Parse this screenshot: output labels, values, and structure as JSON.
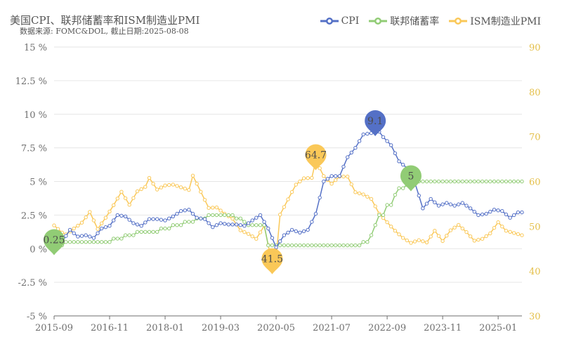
{
  "chart_data": {
    "type": "line",
    "title": "美国CPI、联邦储蓄率和ISM制造业PMI",
    "subtitle": "数据来源: FOMC&DOL, 截止日期:2025-08-08",
    "x_ticks": [
      "2015-09",
      "2016-11",
      "2018-01",
      "2019-03",
      "2020-05",
      "2021-07",
      "2022-09",
      "2023-11",
      "2025-01"
    ],
    "y_left": {
      "ticks": [
        -5,
        -2.5,
        0,
        2.5,
        5,
        7.5,
        10,
        12.5,
        15
      ],
      "tick_labels": [
        "-5 %",
        "-2.5 %",
        "0 %",
        "2.5 %",
        "5 %",
        "7.5 %",
        "10 %",
        "12.5 %",
        "15 %"
      ],
      "range": [
        -5,
        15
      ]
    },
    "y_right": {
      "ticks": [
        30,
        40,
        50,
        60,
        70,
        80,
        90
      ],
      "tick_labels": [
        "30",
        "40",
        "50",
        "60",
        "70",
        "80",
        "90"
      ],
      "range": [
        30,
        90
      ]
    },
    "series": [
      {
        "name": "CPI",
        "color": "#5470c6",
        "axis": "left",
        "points": [
          [
            "2015-09",
            0.0
          ],
          [
            "2015-11",
            0.5
          ],
          [
            "2016-01",
            1.4
          ],
          [
            "2016-03",
            0.9
          ],
          [
            "2016-05",
            1.0
          ],
          [
            "2016-07",
            0.8
          ],
          [
            "2016-09",
            1.5
          ],
          [
            "2016-11",
            1.7
          ],
          [
            "2017-01",
            2.5
          ],
          [
            "2017-03",
            2.4
          ],
          [
            "2017-05",
            1.9
          ],
          [
            "2017-07",
            1.7
          ],
          [
            "2017-09",
            2.2
          ],
          [
            "2017-11",
            2.2
          ],
          [
            "2018-01",
            2.1
          ],
          [
            "2018-03",
            2.4
          ],
          [
            "2018-05",
            2.8
          ],
          [
            "2018-07",
            2.9
          ],
          [
            "2018-09",
            2.3
          ],
          [
            "2018-11",
            2.2
          ],
          [
            "2019-01",
            1.6
          ],
          [
            "2019-03",
            1.9
          ],
          [
            "2019-05",
            1.8
          ],
          [
            "2019-07",
            1.8
          ],
          [
            "2019-09",
            1.7
          ],
          [
            "2019-11",
            2.1
          ],
          [
            "2020-01",
            2.5
          ],
          [
            "2020-03",
            1.5
          ],
          [
            "2020-05",
            0.1
          ],
          [
            "2020-07",
            1.0
          ],
          [
            "2020-09",
            1.4
          ],
          [
            "2020-11",
            1.2
          ],
          [
            "2021-01",
            1.4
          ],
          [
            "2021-03",
            2.6
          ],
          [
            "2021-05",
            5.0
          ],
          [
            "2021-07",
            5.4
          ],
          [
            "2021-09",
            5.4
          ],
          [
            "2021-11",
            6.8
          ],
          [
            "2022-01",
            7.5
          ],
          [
            "2022-03",
            8.5
          ],
          [
            "2022-05",
            8.6
          ],
          [
            "2022-06",
            9.1
          ],
          [
            "2022-08",
            8.3
          ],
          [
            "2022-10",
            7.7
          ],
          [
            "2022-12",
            6.5
          ],
          [
            "2023-02",
            6.0
          ],
          [
            "2023-04",
            4.9
          ],
          [
            "2023-06",
            3.0
          ],
          [
            "2023-08",
            3.7
          ],
          [
            "2023-10",
            3.2
          ],
          [
            "2023-12",
            3.4
          ],
          [
            "2024-02",
            3.2
          ],
          [
            "2024-04",
            3.4
          ],
          [
            "2024-06",
            3.0
          ],
          [
            "2024-08",
            2.5
          ],
          [
            "2024-10",
            2.6
          ],
          [
            "2024-12",
            2.9
          ],
          [
            "2025-02",
            2.8
          ],
          [
            "2025-04",
            2.3
          ],
          [
            "2025-06",
            2.7
          ],
          [
            "2025-07",
            2.7
          ]
        ]
      },
      {
        "name": "联邦储蓄率",
        "color": "#91cc75",
        "axis": "left",
        "points": [
          [
            "2015-09",
            0.25
          ],
          [
            "2015-12",
            0.5
          ],
          [
            "2016-12",
            0.75
          ],
          [
            "2017-03",
            1.0
          ],
          [
            "2017-06",
            1.25
          ],
          [
            "2017-12",
            1.5
          ],
          [
            "2018-03",
            1.75
          ],
          [
            "2018-06",
            2.0
          ],
          [
            "2018-09",
            2.25
          ],
          [
            "2018-12",
            2.5
          ],
          [
            "2019-07",
            2.25
          ],
          [
            "2019-09",
            2.0
          ],
          [
            "2019-10",
            1.75
          ],
          [
            "2020-03",
            0.25
          ],
          [
            "2022-03",
            0.5
          ],
          [
            "2022-05",
            1.0
          ],
          [
            "2022-06",
            1.75
          ],
          [
            "2022-07",
            2.5
          ],
          [
            "2022-09",
            3.25
          ],
          [
            "2022-11",
            4.0
          ],
          [
            "2022-12",
            4.5
          ],
          [
            "2023-02",
            4.75
          ],
          [
            "2023-03",
            5.0
          ],
          [
            "2023-07",
            5.0
          ],
          [
            "2025-07",
            5.0
          ]
        ]
      },
      {
        "name": "ISM制造业PMI",
        "color": "#fac858",
        "axis": "right",
        "points": [
          [
            "2015-09",
            50.2
          ],
          [
            "2015-11",
            48.6
          ],
          [
            "2015-12",
            48.2
          ],
          [
            "2016-02",
            49.5
          ],
          [
            "2016-04",
            50.8
          ],
          [
            "2016-06",
            53.2
          ],
          [
            "2016-08",
            49.4
          ],
          [
            "2016-10",
            51.9
          ],
          [
            "2016-12",
            54.7
          ],
          [
            "2017-02",
            57.7
          ],
          [
            "2017-04",
            54.8
          ],
          [
            "2017-06",
            57.8
          ],
          [
            "2017-08",
            58.8
          ],
          [
            "2017-09",
            60.8
          ],
          [
            "2017-11",
            58.2
          ],
          [
            "2018-01",
            59.1
          ],
          [
            "2018-03",
            59.3
          ],
          [
            "2018-05",
            58.7
          ],
          [
            "2018-07",
            58.1
          ],
          [
            "2018-08",
            61.3
          ],
          [
            "2018-10",
            57.7
          ],
          [
            "2018-12",
            54.1
          ],
          [
            "2019-02",
            54.2
          ],
          [
            "2019-04",
            52.8
          ],
          [
            "2019-06",
            51.7
          ],
          [
            "2019-08",
            49.1
          ],
          [
            "2019-10",
            48.3
          ],
          [
            "2019-12",
            47.2
          ],
          [
            "2020-02",
            50.1
          ],
          [
            "2020-04",
            41.5
          ],
          [
            "2020-05",
            43.1
          ],
          [
            "2020-06",
            52.6
          ],
          [
            "2020-08",
            56.0
          ],
          [
            "2020-10",
            59.3
          ],
          [
            "2020-12",
            60.7
          ],
          [
            "2021-02",
            60.8
          ],
          [
            "2021-03",
            64.7
          ],
          [
            "2021-05",
            61.2
          ],
          [
            "2021-07",
            59.5
          ],
          [
            "2021-09",
            61.1
          ],
          [
            "2021-11",
            61.1
          ],
          [
            "2022-01",
            57.6
          ],
          [
            "2022-03",
            57.1
          ],
          [
            "2022-05",
            56.1
          ],
          [
            "2022-07",
            52.8
          ],
          [
            "2022-09",
            50.9
          ],
          [
            "2022-11",
            49.0
          ],
          [
            "2023-01",
            47.4
          ],
          [
            "2023-03",
            46.3
          ],
          [
            "2023-05",
            46.9
          ],
          [
            "2023-07",
            46.4
          ],
          [
            "2023-09",
            49.0
          ],
          [
            "2023-11",
            46.7
          ],
          [
            "2024-01",
            49.1
          ],
          [
            "2024-03",
            50.3
          ],
          [
            "2024-05",
            48.7
          ],
          [
            "2024-07",
            46.8
          ],
          [
            "2024-09",
            47.2
          ],
          [
            "2024-11",
            48.4
          ],
          [
            "2025-01",
            50.9
          ],
          [
            "2025-03",
            49.0
          ],
          [
            "2025-05",
            48.5
          ],
          [
            "2025-07",
            48.0
          ]
        ]
      }
    ],
    "markers": [
      {
        "series": "CPI",
        "label": "9.1",
        "x": "2022-06",
        "y": 9.1
      },
      {
        "series": "联邦储蓄率",
        "label": "5",
        "x": "2023-03",
        "y": 5.0
      },
      {
        "series": "联邦储蓄率",
        "label": "0.25",
        "x": "2015-09",
        "y": 0.25
      },
      {
        "series": "ISM制造业PMI",
        "label": "64.7",
        "x": "2021-03",
        "y": 64.7
      },
      {
        "series": "ISM制造业PMI",
        "label": "41.5",
        "x": "2020-04",
        "y": 41.5
      }
    ],
    "grid": true,
    "legend_position": "top-right"
  }
}
